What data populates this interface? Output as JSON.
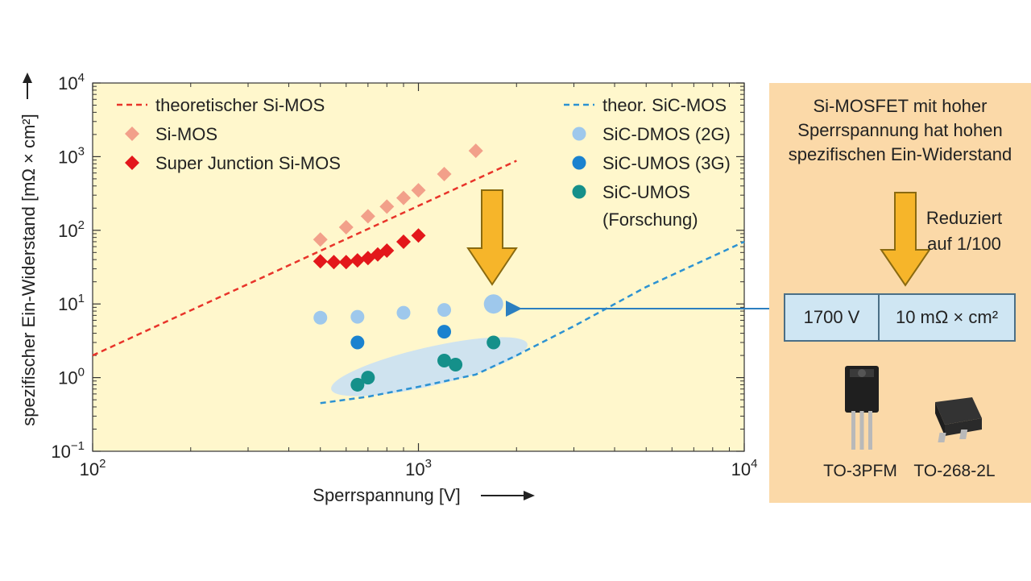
{
  "chart_data": {
    "type": "scatter",
    "x_scale": "log",
    "y_scale": "log",
    "xlim": [
      100,
      10000
    ],
    "ylim": [
      0.1,
      10000
    ],
    "xlabel": "Sperrspannung [V]",
    "ylabel": "spezifischer Ein-Widerstand [mΩ × cm²]",
    "x_ticks": [
      {
        "value": 100,
        "base": "10",
        "exp": "2"
      },
      {
        "value": 1000,
        "base": "10",
        "exp": "3"
      },
      {
        "value": 10000,
        "base": "10",
        "exp": "4"
      }
    ],
    "y_ticks": [
      {
        "value": 0.1,
        "base": "10",
        "exp": "−1"
      },
      {
        "value": 1,
        "base": "10",
        "exp": "0"
      },
      {
        "value": 10,
        "base": "10",
        "exp": "1"
      },
      {
        "value": 100,
        "base": "10",
        "exp": "2"
      },
      {
        "value": 1000,
        "base": "10",
        "exp": "3"
      },
      {
        "value": 10000,
        "base": "10",
        "exp": "4"
      }
    ],
    "grid": false,
    "legend_position": "top",
    "series": [
      {
        "name": "theoretischer Si-MOS",
        "kind": "dashed-line",
        "color": "#e8342a",
        "points": [
          [
            100,
            2.0
          ],
          [
            2000,
            880
          ]
        ]
      },
      {
        "name": "Si-MOS",
        "kind": "diamond",
        "color": "#f2a08a",
        "points": [
          [
            500,
            75
          ],
          [
            600,
            110
          ],
          [
            700,
            155
          ],
          [
            800,
            210
          ],
          [
            900,
            275
          ],
          [
            1000,
            350
          ],
          [
            1200,
            580
          ],
          [
            1500,
            1200
          ]
        ]
      },
      {
        "name": "Super Junction Si-MOS",
        "kind": "diamond",
        "color": "#e3171b",
        "points": [
          [
            500,
            38
          ],
          [
            550,
            37
          ],
          [
            600,
            37
          ],
          [
            650,
            39
          ],
          [
            700,
            42
          ],
          [
            750,
            47
          ],
          [
            800,
            53
          ],
          [
            900,
            70
          ],
          [
            1000,
            85
          ]
        ]
      },
      {
        "name": "theor. SiC-MOS",
        "kind": "dashed-line",
        "color": "#2c92d2",
        "points": [
          [
            500,
            0.45
          ],
          [
            700,
            0.55
          ],
          [
            1000,
            0.75
          ],
          [
            1500,
            1.1
          ],
          [
            2000,
            2.0
          ],
          [
            3000,
            5.0
          ],
          [
            5000,
            17
          ],
          [
            10000,
            70
          ]
        ]
      },
      {
        "name": "SiC-DMOS (2G)",
        "kind": "circle",
        "color": "#9ec8ec",
        "points": [
          [
            500,
            6.5
          ],
          [
            650,
            6.7
          ],
          [
            900,
            7.6
          ],
          [
            1200,
            8.3
          ],
          [
            1700,
            10
          ]
        ]
      },
      {
        "name": "SiC-UMOS (3G)",
        "kind": "circle",
        "color": "#1a82cf",
        "points": [
          [
            650,
            3.0
          ],
          [
            1200,
            4.2
          ]
        ]
      },
      {
        "name": "SiC-UMOS (Forschung)",
        "label_lines": [
          "SiC-UMOS",
          "(Forschung)"
        ],
        "kind": "circle",
        "color": "#15908a",
        "points": [
          [
            650,
            0.8
          ],
          [
            700,
            1.0
          ],
          [
            1200,
            1.7
          ],
          [
            1300,
            1.5
          ],
          [
            1700,
            3.0
          ]
        ]
      }
    ],
    "highlight_point": {
      "x": 1700,
      "y": 10
    }
  },
  "side_panel": {
    "title": "Si-MOSFET mit hoher\nSperrspannung hat hohen\nspezifischen Ein-Widerstand",
    "reduction_label": "Reduziert\nauf 1/100",
    "voltage": "1700 V",
    "resistance": "10 mΩ × cm²",
    "packages": [
      "TO-3PFM",
      "TO-268-2L"
    ]
  },
  "colors": {
    "plot_background": "#fff7cc",
    "panel_background": "#fbd9a8",
    "arrow_fill": "#f6b52a",
    "arrow_stroke": "#8a6a10",
    "connector": "#2c7fc0",
    "highlight_ellipse": "#cfe3ef"
  }
}
